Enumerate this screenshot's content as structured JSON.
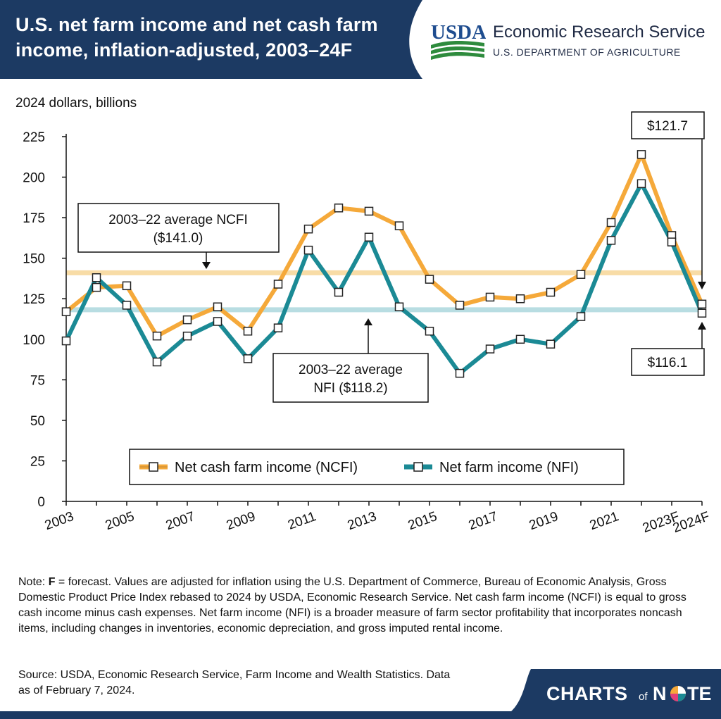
{
  "header": {
    "title_line1": "U.S. net farm income and net cash farm",
    "title_line2": "income, inflation-adjusted, 2003–24F",
    "logo_text": "USDA",
    "agency": "Economic Research Service",
    "department": "U.S. DEPARTMENT OF AGRICULTURE",
    "header_color": "#1c3a63"
  },
  "chart_data": {
    "type": "line",
    "ylabel": "2024 dollars, billions",
    "ylim": [
      0,
      225
    ],
    "yticks": [
      0,
      25,
      50,
      75,
      100,
      125,
      150,
      175,
      200,
      225
    ],
    "x": [
      "2003",
      "2004",
      "2005",
      "2006",
      "2007",
      "2008",
      "2009",
      "2010",
      "2011",
      "2012",
      "2013",
      "2014",
      "2015",
      "2016",
      "2017",
      "2018",
      "2019",
      "2020",
      "2021",
      "2022",
      "2023F",
      "2024F"
    ],
    "x_tick_labels": [
      "2003",
      "",
      "2005",
      "",
      "2007",
      "",
      "2009",
      "",
      "2011",
      "",
      "2013",
      "",
      "2015",
      "",
      "2017",
      "",
      "2019",
      "",
      "2021",
      "",
      "2023F",
      "2024F"
    ],
    "grid": false,
    "legend_position": "bottom-center",
    "series": [
      {
        "name": "Net cash farm income (NCFI)",
        "color": "#f5a93a",
        "values": [
          117,
          132,
          133,
          102,
          112,
          120,
          105,
          134,
          168,
          181,
          179,
          170,
          137,
          121,
          126,
          125,
          129,
          140,
          172,
          214,
          164,
          121.7
        ]
      },
      {
        "name": "Net farm income (NFI)",
        "color": "#1b8a95",
        "values": [
          99,
          138,
          121,
          86,
          102,
          111,
          88,
          107,
          155,
          129,
          163,
          120,
          105,
          79,
          94,
          100,
          97,
          114,
          161,
          196,
          160,
          116.1
        ]
      }
    ],
    "reference_lines": [
      {
        "name": "NCFI average",
        "value": 141.0,
        "color": "#f8dca6",
        "label_line1": "2003–22 average NCFI",
        "label_line2": "($141.0)"
      },
      {
        "name": "NFI average",
        "value": 118.2,
        "color": "#b8dde2",
        "label_line1": "2003–22 average",
        "label_line2": "NFI ($118.2)"
      }
    ],
    "callouts": [
      {
        "text": "$121.7"
      },
      {
        "text": "$116.1"
      }
    ]
  },
  "notes": {
    "prefix": "Note: ",
    "f_letter": "F",
    "text": " = forecast. Values are adjusted for inflation using the U.S. Department of Commerce, Bureau of Economic Analysis, Gross Domestic Product Price Index rebased to 2024 by USDA, Economic Research Service. Net cash farm income (NCFI) is equal to gross cash income minus cash expenses. Net farm income (NFI) is a broader measure of farm sector profitability that incorporates noncash items, including changes in inventories, economic depreciation, and gross imputed rental income."
  },
  "source": "Source: USDA, Economic Research Service, Farm Income and Wealth Statistics. Data as of February 7, 2024.",
  "footer": {
    "brand_left": "CHARTS",
    "brand_of": "of",
    "brand_right": "N",
    "brand_end": "TE"
  }
}
